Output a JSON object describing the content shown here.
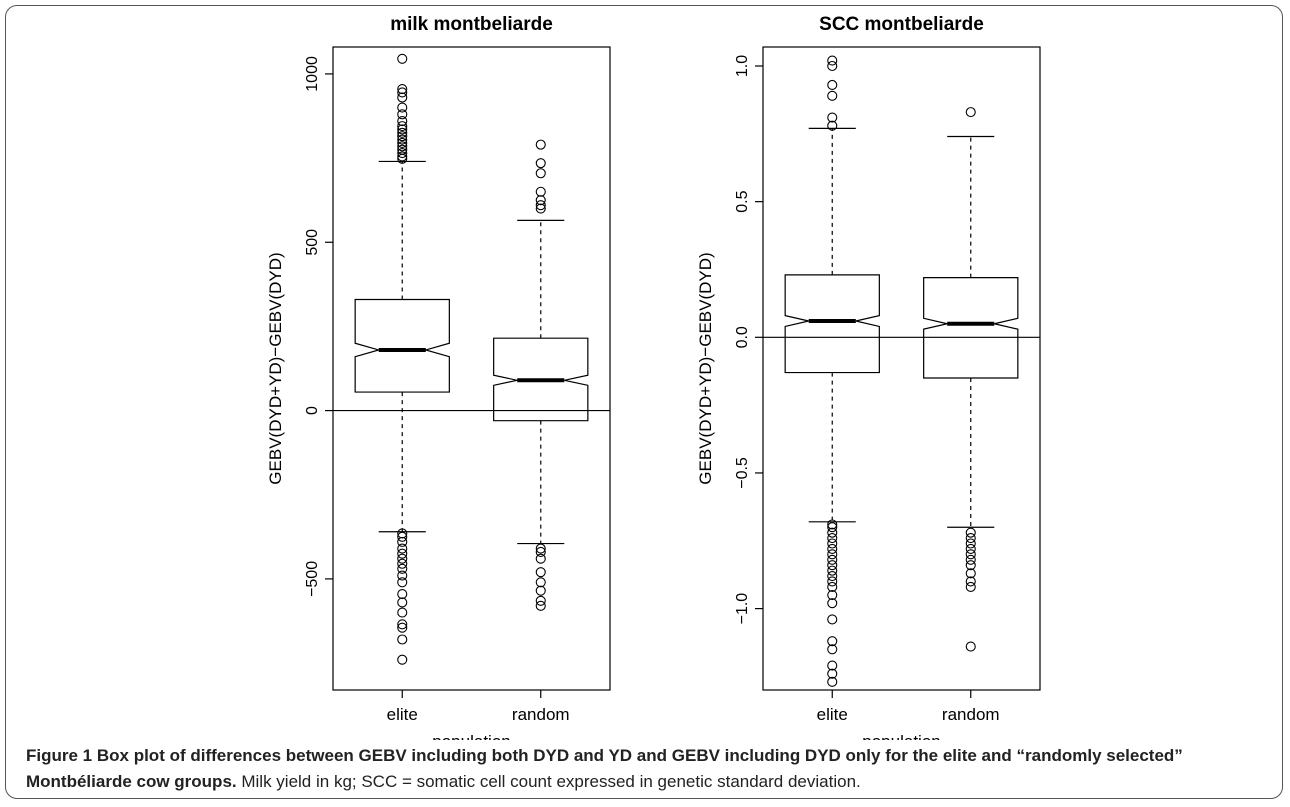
{
  "caption": {
    "label": "Figure 1",
    "title": "Box plot of differences between GEBV including both DYD and YD and GEBV including DYD only for the elite and “randomly selected” Montbéliarde cow groups.",
    "note": "Milk yield in kg; SCC = somatic cell count expressed in genetic standard deviation."
  },
  "chart_data": [
    {
      "type": "box",
      "title": "milk montbeliarde",
      "xlabel": "population",
      "ylabel": "GEBV(DYD+YD)−GEBV(DYD)",
      "categories": [
        "elite",
        "random"
      ],
      "ylim": [
        -830,
        1080
      ],
      "yticks": [
        -500,
        0,
        500,
        1000
      ],
      "ytick_labels": [
        "−500",
        "0",
        "500",
        "1000"
      ],
      "reference_line": 0,
      "notched": true,
      "boxes": [
        {
          "category": "elite",
          "whisker_low": -360,
          "q1": 55,
          "median": 180,
          "q3": 330,
          "whisker_high": 740,
          "notch_low": 160,
          "notch_high": 200,
          "outliers": [
            1045,
            955,
            945,
            930,
            900,
            880,
            860,
            845,
            835,
            825,
            815,
            805,
            795,
            785,
            775,
            765,
            755,
            748,
            -365,
            -375,
            -390,
            -410,
            -425,
            -440,
            -455,
            -470,
            -490,
            -510,
            -545,
            -570,
            -600,
            -635,
            -645,
            -680,
            -740
          ]
        },
        {
          "category": "random",
          "whisker_low": -395,
          "q1": -30,
          "median": 90,
          "q3": 215,
          "whisker_high": 565,
          "notch_low": 75,
          "notch_high": 105,
          "outliers": [
            790,
            735,
            705,
            650,
            625,
            610,
            600,
            -410,
            -420,
            -440,
            -480,
            -510,
            -535,
            -565,
            -580
          ]
        }
      ]
    },
    {
      "type": "box",
      "title": "SCC montbeliarde",
      "xlabel": "population",
      "ylabel": "GEBV(DYD+YD)−GEBV(DYD)",
      "categories": [
        "elite",
        "random"
      ],
      "ylim": [
        -1.3,
        1.07
      ],
      "yticks": [
        -1.0,
        -0.5,
        0.0,
        0.5,
        1.0
      ],
      "ytick_labels": [
        "−1.0",
        "−0.5",
        "0.0",
        "0.5",
        "1.0"
      ],
      "reference_line": 0,
      "notched": true,
      "boxes": [
        {
          "category": "elite",
          "whisker_low": -0.68,
          "q1": -0.13,
          "median": 0.06,
          "q3": 0.23,
          "whisker_high": 0.77,
          "notch_low": 0.04,
          "notch_high": 0.08,
          "outliers": [
            1.02,
            1.0,
            0.93,
            0.89,
            0.81,
            0.78,
            -0.69,
            -0.7,
            -0.72,
            -0.74,
            -0.76,
            -0.78,
            -0.8,
            -0.82,
            -0.84,
            -0.86,
            -0.88,
            -0.9,
            -0.92,
            -0.95,
            -0.98,
            -1.04,
            -1.12,
            -1.15,
            -1.21,
            -1.24,
            -1.27
          ]
        },
        {
          "category": "random",
          "whisker_low": -0.7,
          "q1": -0.15,
          "median": 0.05,
          "q3": 0.22,
          "whisker_high": 0.74,
          "notch_low": 0.03,
          "notch_high": 0.07,
          "outliers": [
            0.83,
            -0.72,
            -0.74,
            -0.76,
            -0.78,
            -0.8,
            -0.82,
            -0.84,
            -0.87,
            -0.9,
            -0.92,
            -1.14
          ]
        }
      ]
    }
  ]
}
